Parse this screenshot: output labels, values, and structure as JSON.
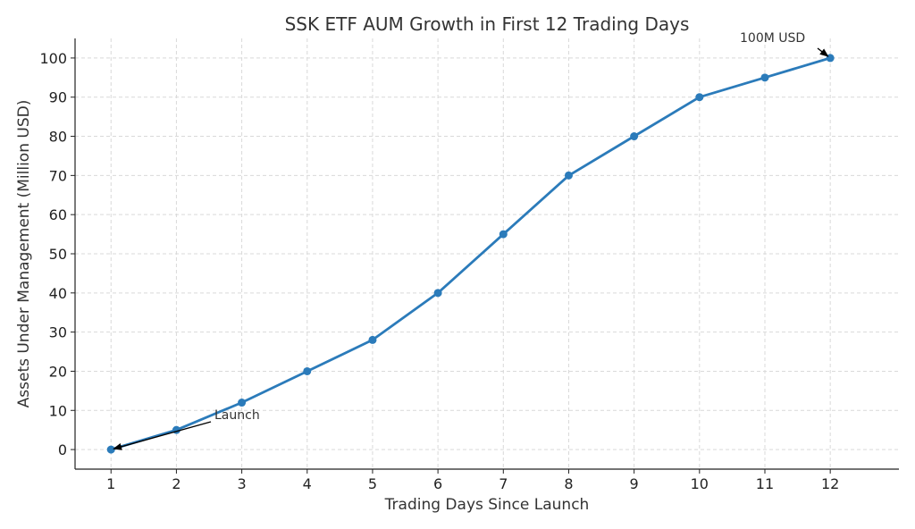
{
  "chart_data": {
    "type": "line",
    "title": "SSK ETF AUM Growth in First 12 Trading Days",
    "xlabel": "Trading Days Since Launch",
    "ylabel": "Assets Under Management (Million USD)",
    "x": [
      1,
      2,
      3,
      4,
      5,
      6,
      7,
      8,
      9,
      10,
      11,
      12
    ],
    "series": [
      {
        "values": [
          0,
          5,
          12,
          20,
          28,
          40,
          55,
          70,
          80,
          90,
          95,
          100
        ],
        "color": "#2b7bba"
      }
    ],
    "xlim": [
      0.45,
      13.05
    ],
    "ylim": [
      -5,
      105
    ],
    "xticks": [
      1,
      2,
      3,
      4,
      5,
      6,
      7,
      8,
      9,
      10,
      11,
      12
    ],
    "yticks": [
      0,
      10,
      20,
      30,
      40,
      50,
      60,
      70,
      80,
      90,
      100
    ],
    "grid": true,
    "annotations": [
      {
        "text": "Launch",
        "x": 1,
        "y": 0
      },
      {
        "text": "100M USD",
        "x": 12,
        "y": 100
      }
    ]
  }
}
